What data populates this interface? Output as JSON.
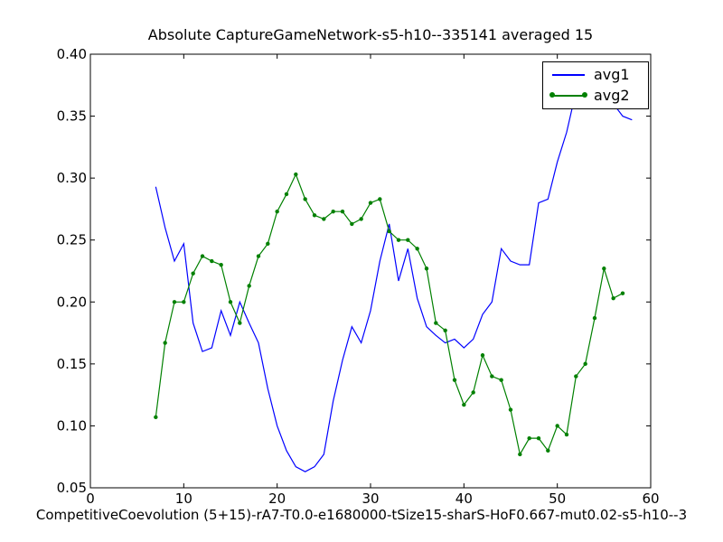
{
  "chart_data": {
    "type": "line",
    "title": "Absolute CaptureGameNetwork-s5-h10--335141 averaged 15",
    "xlabel": "CompetitiveCoevolution (5+15)-rA7-T0.0-e1680000-tSize15-sharS-HoF0.667-mut0.02-s5-h10--3",
    "ylabel": "",
    "xlim": [
      0,
      60
    ],
    "ylim": [
      0.05,
      0.4
    ],
    "xticks": [
      "0",
      "10",
      "20",
      "30",
      "40",
      "50",
      "60"
    ],
    "yticks": [
      "0.05",
      "0.10",
      "0.15",
      "0.20",
      "0.25",
      "0.30",
      "0.35",
      "0.40"
    ],
    "grid": false,
    "legend_position": "top-right",
    "series": [
      {
        "name": "avg1",
        "color": "#0000ff",
        "marker": "none",
        "x": [
          7,
          8,
          9,
          10,
          11,
          12,
          13,
          14,
          15,
          16,
          17,
          18,
          19,
          20,
          21,
          22,
          23,
          24,
          25,
          26,
          27,
          28,
          29,
          30,
          31,
          32,
          33,
          34,
          35,
          36,
          37,
          38,
          39,
          40,
          41,
          42,
          43,
          44,
          45,
          46,
          47,
          48,
          49,
          50,
          51,
          52,
          53,
          54,
          55,
          56,
          57,
          58
        ],
        "y": [
          0.293,
          0.26,
          0.233,
          0.247,
          0.183,
          0.16,
          0.163,
          0.193,
          0.173,
          0.2,
          0.183,
          0.167,
          0.13,
          0.1,
          0.08,
          0.067,
          0.063,
          0.067,
          0.077,
          0.12,
          0.153,
          0.18,
          0.167,
          0.193,
          0.233,
          0.263,
          0.217,
          0.243,
          0.203,
          0.18,
          0.173,
          0.167,
          0.17,
          0.163,
          0.17,
          0.19,
          0.2,
          0.243,
          0.233,
          0.23,
          0.23,
          0.28,
          0.283,
          0.313,
          0.337,
          0.37,
          0.38,
          0.38,
          0.373,
          0.36,
          0.35,
          0.347
        ]
      },
      {
        "name": "avg2",
        "color": "#008000",
        "marker": "dot",
        "x": [
          7,
          8,
          9,
          10,
          11,
          12,
          13,
          14,
          15,
          16,
          17,
          18,
          19,
          20,
          21,
          22,
          23,
          24,
          25,
          26,
          27,
          28,
          29,
          30,
          31,
          32,
          33,
          34,
          35,
          36,
          37,
          38,
          39,
          40,
          41,
          42,
          43,
          44,
          45,
          46,
          47,
          48,
          49,
          50,
          51,
          52,
          53,
          54,
          55,
          56,
          57
        ],
        "y": [
          0.107,
          0.167,
          0.2,
          0.2,
          0.223,
          0.237,
          0.233,
          0.23,
          0.2,
          0.183,
          0.213,
          0.237,
          0.247,
          0.273,
          0.287,
          0.303,
          0.283,
          0.27,
          0.267,
          0.273,
          0.273,
          0.263,
          0.267,
          0.28,
          0.283,
          0.257,
          0.25,
          0.25,
          0.243,
          0.227,
          0.183,
          0.177,
          0.137,
          0.117,
          0.127,
          0.157,
          0.14,
          0.137,
          0.113,
          0.077,
          0.09,
          0.09,
          0.08,
          0.1,
          0.093,
          0.14,
          0.15,
          0.187,
          0.227,
          0.203,
          0.207
        ]
      }
    ]
  }
}
